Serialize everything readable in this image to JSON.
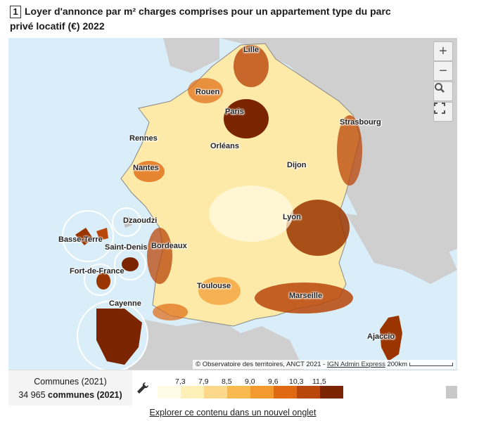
{
  "title": {
    "number": "1",
    "text": "Loyer d'annonce par m² charges comprises pour un appartement type du parc privé locatif (€) 2022"
  },
  "map": {
    "cities": [
      "Lille",
      "Rouen",
      "Paris",
      "Strasbourg",
      "Rennes",
      "Orléans",
      "Nantes",
      "Dijon",
      "Dzaoudzi",
      "Basse-Terre",
      "Saint-Denis",
      "Lyon",
      "Bordeaux",
      "Fort-de-France",
      "Toulouse",
      "Marseille",
      "Cayenne",
      "Ajaccio"
    ],
    "controls": {
      "zoom_in": "+",
      "zoom_out": "−",
      "search": "search-icon",
      "fullscreen": "fullscreen-icon"
    },
    "attribution": "© Observatoire des territoires, ANCT 2021 - ",
    "attribution_link": "IGN Admin Express",
    "scale_label": "200km",
    "colors": {
      "sea": "#d9eef9",
      "land_neighbour": "#cfcfcf",
      "low": "#fff8dc",
      "high": "#7a2500"
    }
  },
  "legend": {
    "unit_line1": "Communes (2021)",
    "count": "34 965",
    "count_suffix": "communes (2021)",
    "thresholds": [
      "7,3",
      "7,9",
      "8,5",
      "9,0",
      "9,6",
      "10,3",
      "11,5"
    ],
    "classes": [
      "#fffbe6",
      "#fff0b8",
      "#fcd98a",
      "#f8ba4e",
      "#f29a2e",
      "#e06a12",
      "#b9460a",
      "#7a2500"
    ],
    "nodata_color": "#c8c8c8"
  },
  "footer": {
    "explore_link": "Explorer ce contenu dans un nouvel onglet"
  }
}
